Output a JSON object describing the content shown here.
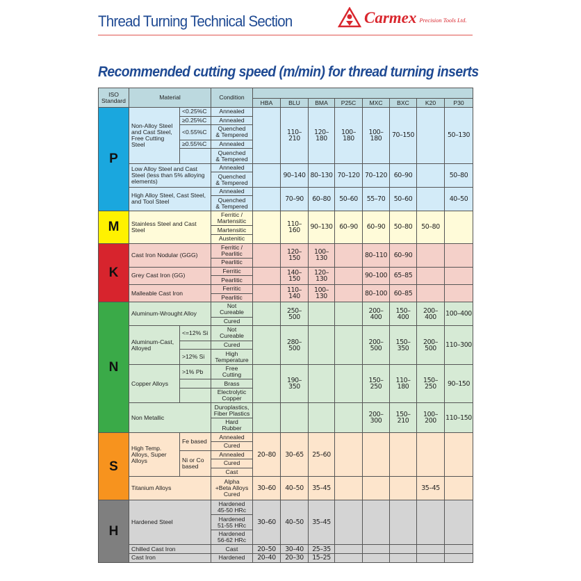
{
  "header": {
    "section_title": "Thread Turning Technical Section",
    "brand": "Carmex",
    "brand_sub": "Precision Tools Ltd.",
    "brand_color": "#d9262d",
    "title_color": "#1f4a93"
  },
  "title": "Recommended cutting speed (m/min) for thread turning inserts",
  "table": {
    "columns": {
      "iso": "ISO Standard",
      "material": "Material",
      "condition": "Condition"
    },
    "grades": [
      "HBA",
      "BLU",
      "BMA",
      "P25C",
      "MXC",
      "BXC",
      "K20",
      "P30"
    ],
    "groups": [
      {
        "iso": "P",
        "color": "#1aa7de",
        "bg": "#d3ebf8",
        "materials": [
          {
            "name": "Non-Alloy Steel and Cast Steel, Free Cutting Steel",
            "subs": [
              {
                "label": "<0.25%C",
                "conditions": [
                  "Annealed"
                ]
              },
              {
                "label": "≥0.25%C",
                "conditions": [
                  "Annealed"
                ]
              },
              {
                "label": "<0.55%C",
                "conditions": [
                  "Quenched\n& Tempered"
                ]
              },
              {
                "label": "≥0.55%C",
                "conditions": [
                  "Annealed"
                ]
              },
              {
                "label": "",
                "conditions": [
                  "Quenched\n& Tempered"
                ]
              }
            ],
            "speeds": [
              "",
              "110-210",
              "120-180",
              "100-180",
              "100-180",
              "70-150",
              "",
              "50-130"
            ]
          },
          {
            "name": "Low Alloy Steel and Cast Steel (less than 5% alloying elements)",
            "conditions": [
              "Annealed",
              "Quenched\n& Tempered"
            ],
            "speeds": [
              "",
              "90-140",
              "80-130",
              "70-120",
              "70-120",
              "60-90",
              "",
              "50-80"
            ]
          },
          {
            "name": "High Alloy Steel, Cast Steel, and Tool Steel",
            "conditions": [
              "Annealed",
              "Quenched\n& Tempered"
            ],
            "speeds": [
              "",
              "70-90",
              "60-80",
              "50-60",
              "55-70",
              "50-60",
              "",
              "40-50"
            ]
          }
        ]
      },
      {
        "iso": "M",
        "color": "#fff200",
        "bg": "#fffbd9",
        "materials": [
          {
            "name": "Stainless Steel and Cast Steel",
            "conditions": [
              "Ferritic /\nMartensitic",
              "Martensitic",
              "Austenitic"
            ],
            "speeds": [
              "",
              "110-160",
              "90-130",
              "60-90",
              "60-90",
              "50-80",
              "50-80",
              ""
            ]
          }
        ]
      },
      {
        "iso": "K",
        "color": "#d7242d",
        "bg": "#f4d0c9",
        "materials": [
          {
            "name": "Cast Iron Nodular (GGG)",
            "conditions": [
              "Ferritic /\nPearlitic",
              "Pearlitic"
            ],
            "speeds": [
              "",
              "120-150",
              "100-130",
              "",
              "80-110",
              "60-90",
              "",
              ""
            ]
          },
          {
            "name": "Grey Cast Iron (GG)",
            "conditions": [
              "Ferritic",
              "Pearlitic"
            ],
            "speeds": [
              "",
              "140-150",
              "120-130",
              "",
              "90-100",
              "65-85",
              "",
              ""
            ]
          },
          {
            "name": "Malleable Cast Iron",
            "conditions": [
              "Ferritic",
              "Pearlitic"
            ],
            "speeds": [
              "",
              "110-140",
              "100-130",
              "",
              "80-100",
              "60-85",
              "",
              ""
            ]
          }
        ]
      },
      {
        "iso": "N",
        "color": "#3aaa48",
        "bg": "#d6ead5",
        "materials": [
          {
            "name": "Aluminum-Wrought Alloy",
            "conditions": [
              "Not\nCureable",
              "Cured"
            ],
            "speeds": [
              "",
              "250-500",
              "",
              "",
              "200-400",
              "150-400",
              "200-400",
              "100-400"
            ]
          },
          {
            "name": "Aluminum-Cast, Alloyed",
            "subs": [
              {
                "label": "<=12% Si",
                "conditions": [
                  "Not\nCureable"
                ]
              },
              {
                "label": "",
                "conditions": [
                  "Cured"
                ]
              },
              {
                "label": ">12% Si",
                "conditions": [
                  "High\nTemperature"
                ]
              }
            ],
            "speeds": [
              "",
              "280-500",
              "",
              "",
              "200-500",
              "150-350",
              "200-500",
              "110-300"
            ]
          },
          {
            "name": "Copper Alloys",
            "subs": [
              {
                "label": ">1% Pb",
                "conditions": [
                  "Free\nCutting"
                ]
              },
              {
                "label": "",
                "conditions": [
                  "Brass"
                ]
              },
              {
                "label": "",
                "conditions": [
                  "Electrolytic\nCopper"
                ]
              }
            ],
            "speeds": [
              "",
              "190-350",
              "",
              "",
              "150-250",
              "110-180",
              "150-250",
              "90-150"
            ]
          },
          {
            "name": "Non Metallic",
            "conditions": [
              "Duroplastics,\nFiber Plastics",
              "Hard\nRubber"
            ],
            "speeds": [
              "",
              "",
              "",
              "",
              "200-300",
              "150-210",
              "100-200",
              "110-150"
            ]
          }
        ]
      },
      {
        "iso": "S",
        "color": "#f7931e",
        "bg": "#fde5cc",
        "materials": [
          {
            "name": "High Temp. Alloys, Super Alloys",
            "subs": [
              {
                "label": "Fe based",
                "conditions": [
                  "Annealed",
                  "Cured"
                ]
              },
              {
                "label": "Ni or Co based",
                "conditions": [
                  "Annealed",
                  "Cured",
                  "Cast"
                ]
              }
            ],
            "speeds": [
              "20-80",
              "30-65",
              "25-60",
              "",
              "",
              "",
              "",
              ""
            ]
          },
          {
            "name": "Titanium Alloys",
            "conditions": [
              "Alpha\n+Beta Alloys\nCured"
            ],
            "speeds": [
              "30-60",
              "40-50",
              "35-45",
              "",
              "",
              "",
              "35-45",
              ""
            ]
          }
        ]
      },
      {
        "iso": "H",
        "color": "#7f7f7f",
        "bg": "#d4d4d4",
        "materials": [
          {
            "name": "Hardened Steel",
            "conditions": [
              "Hardened\n45-50 HRc",
              "Hardened\n51-55 HRc",
              "Hardened\n56-62 HRc"
            ],
            "speeds": [
              "30-60",
              "40-50",
              "35-45",
              "",
              "",
              "",
              "",
              ""
            ]
          },
          {
            "name": "Chilled Cast Iron",
            "conditions": [
              "Cast"
            ],
            "speeds": [
              "20-50",
              "30-40",
              "25-35",
              "",
              "",
              "",
              "",
              ""
            ]
          },
          {
            "name": "Cast Iron",
            "conditions": [
              "Hardened"
            ],
            "speeds": [
              "20-40",
              "20-30",
              "15-25",
              "",
              "",
              "",
              "",
              ""
            ]
          }
        ]
      }
    ]
  }
}
